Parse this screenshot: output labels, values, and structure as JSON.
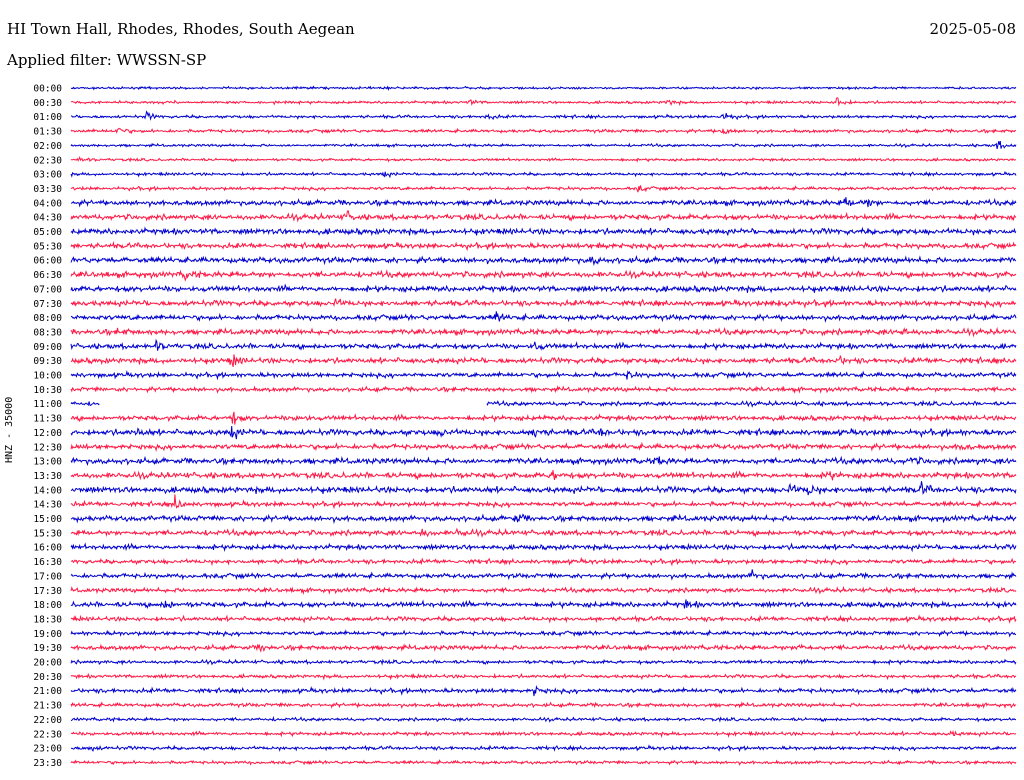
{
  "header": {
    "station": "HI Town Hall, Rhodes, Rhodes, South Aegean",
    "date": "2025-05-08",
    "filter": "Applied filter: WWSSN-SP",
    "channel": "HNZ - 35000"
  },
  "chart_data": {
    "type": "line",
    "title": "HI Town Hall, Rhodes, Rhodes, South Aegean",
    "ylabel": "HNZ - 35000",
    "colors": [
      "#0000cc",
      "#ff1744"
    ],
    "rows": [
      {
        "label": "00:00",
        "amp": 0.8,
        "events": []
      },
      {
        "label": "00:30",
        "amp": 0.9,
        "events": [
          [
            0.42,
            3
          ],
          [
            0.63,
            2.5
          ],
          [
            0.81,
            6
          ]
        ]
      },
      {
        "label": "01:00",
        "amp": 1.0,
        "events": [
          [
            0.08,
            3
          ],
          [
            0.44,
            2.5
          ],
          [
            0.69,
            4
          ]
        ]
      },
      {
        "label": "01:30",
        "amp": 1.1,
        "events": [
          [
            0.05,
            3
          ],
          [
            0.69,
            3
          ]
        ]
      },
      {
        "label": "02:00",
        "amp": 0.9,
        "events": [
          [
            0.98,
            4
          ]
        ]
      },
      {
        "label": "02:30",
        "amp": 0.9,
        "events": [
          [
            0.01,
            3
          ]
        ]
      },
      {
        "label": "03:00",
        "amp": 1.0,
        "events": [
          [
            0.33,
            2.5
          ]
        ]
      },
      {
        "label": "03:30",
        "amp": 1.1,
        "events": [
          [
            0.6,
            3
          ]
        ]
      },
      {
        "label": "04:00",
        "amp": 1.8,
        "events": [
          [
            0.82,
            4
          ],
          [
            0.84,
            4
          ]
        ]
      },
      {
        "label": "04:30",
        "amp": 1.9,
        "events": [
          [
            0.29,
            4.5
          ]
        ]
      },
      {
        "label": "05:00",
        "amp": 2.0,
        "events": []
      },
      {
        "label": "05:30",
        "amp": 1.8,
        "events": [
          [
            0.56,
            3
          ]
        ]
      },
      {
        "label": "06:00",
        "amp": 2.0,
        "events": [
          [
            0.55,
            3
          ]
        ]
      },
      {
        "label": "06:30",
        "amp": 2.0,
        "events": [
          [
            0.12,
            3.5
          ]
        ]
      },
      {
        "label": "07:00",
        "amp": 2.0,
        "events": []
      },
      {
        "label": "07:30",
        "amp": 1.9,
        "events": [
          [
            0.28,
            3
          ],
          [
            0.75,
            4
          ]
        ]
      },
      {
        "label": "08:00",
        "amp": 1.8,
        "events": [
          [
            0.45,
            4
          ]
        ]
      },
      {
        "label": "08:30",
        "amp": 1.9,
        "events": [
          [
            0.05,
            3
          ],
          [
            0.88,
            3
          ]
        ]
      },
      {
        "label": "09:00",
        "amp": 1.8,
        "events": [
          [
            0.09,
            4.5
          ],
          [
            0.49,
            4
          ]
        ]
      },
      {
        "label": "09:30",
        "amp": 1.9,
        "events": [
          [
            0.17,
            5
          ],
          [
            0.81,
            4
          ]
        ]
      },
      {
        "label": "10:00",
        "amp": 1.6,
        "events": [
          [
            0.59,
            3
          ]
        ]
      },
      {
        "label": "10:30",
        "amp": 1.5,
        "events": []
      },
      {
        "label": "11:00",
        "amp": 1.4,
        "events": [],
        "gap": [
          0.03,
          0.44
        ]
      },
      {
        "label": "11:30",
        "amp": 1.7,
        "events": [
          [
            0.17,
            6
          ],
          [
            0.24,
            3
          ]
        ]
      },
      {
        "label": "12:00",
        "amp": 2.0,
        "events": [
          [
            0.07,
            3
          ],
          [
            0.17,
            5
          ],
          [
            0.39,
            3.5
          ],
          [
            0.49,
            5
          ],
          [
            0.56,
            3
          ]
        ]
      },
      {
        "label": "12:30",
        "amp": 1.8,
        "events": [
          [
            0.94,
            3
          ]
        ]
      },
      {
        "label": "13:00",
        "amp": 2.0,
        "events": [
          [
            0.62,
            3.5
          ],
          [
            0.89,
            3
          ]
        ]
      },
      {
        "label": "13:30",
        "amp": 2.0,
        "events": [
          [
            0.51,
            3.5
          ],
          [
            0.8,
            3
          ]
        ]
      },
      {
        "label": "14:00",
        "amp": 2.1,
        "events": [
          [
            0.76,
            4
          ],
          [
            0.78,
            4
          ],
          [
            0.9,
            4
          ]
        ]
      },
      {
        "label": "14:30",
        "amp": 1.6,
        "events": [
          [
            0.11,
            5
          ]
        ]
      },
      {
        "label": "15:00",
        "amp": 1.9,
        "events": [
          [
            0.47,
            4.5
          ]
        ]
      },
      {
        "label": "15:30",
        "amp": 1.8,
        "events": [
          [
            0.37,
            3.5
          ],
          [
            0.41,
            3.5
          ]
        ]
      },
      {
        "label": "16:00",
        "amp": 1.7,
        "events": []
      },
      {
        "label": "16:30",
        "amp": 1.5,
        "events": []
      },
      {
        "label": "17:00",
        "amp": 1.6,
        "events": [
          [
            0.72,
            4
          ]
        ]
      },
      {
        "label": "17:30",
        "amp": 1.5,
        "events": []
      },
      {
        "label": "18:00",
        "amp": 1.8,
        "events": [
          [
            0.1,
            4
          ],
          [
            0.65,
            3
          ]
        ]
      },
      {
        "label": "18:30",
        "amp": 1.5,
        "events": []
      },
      {
        "label": "19:00",
        "amp": 1.4,
        "events": []
      },
      {
        "label": "19:30",
        "amp": 1.6,
        "events": [
          [
            0.2,
            3
          ],
          [
            0.77,
            4.5
          ]
        ]
      },
      {
        "label": "20:00",
        "amp": 1.2,
        "events": []
      },
      {
        "label": "20:30",
        "amp": 1.2,
        "events": []
      },
      {
        "label": "21:00",
        "amp": 1.5,
        "events": [
          [
            0.49,
            3.5
          ]
        ]
      },
      {
        "label": "21:30",
        "amp": 1.3,
        "events": []
      },
      {
        "label": "22:00",
        "amp": 1.1,
        "events": []
      },
      {
        "label": "22:30",
        "amp": 1.2,
        "events": [
          [
            0.93,
            2.5
          ]
        ]
      },
      {
        "label": "23:00",
        "amp": 1.2,
        "events": [
          [
            0.02,
            3
          ]
        ]
      },
      {
        "label": "23:30",
        "amp": 1.1,
        "events": []
      }
    ]
  }
}
